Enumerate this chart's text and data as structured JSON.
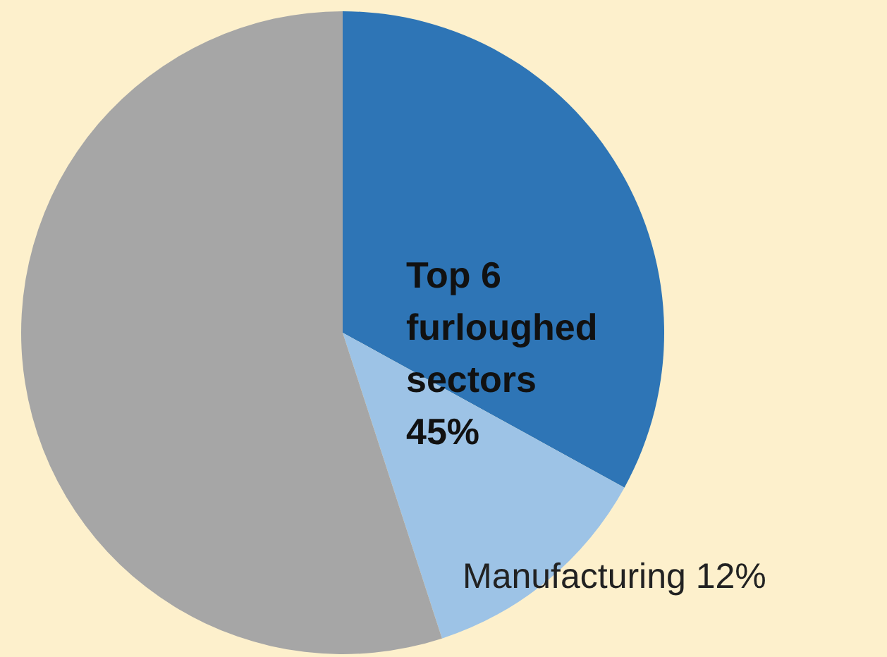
{
  "chart_data": {
    "type": "pie",
    "categories": [
      null,
      "Manufacturing",
      null
    ],
    "values": [
      33,
      12,
      55
    ],
    "colors": [
      "#2e75b6",
      "#9dc3e6",
      "#a6a6a6"
    ],
    "value_labels": [
      null,
      "12%",
      null
    ],
    "annotations": [
      "Top 6\nfurloughed\n sectors\n45%"
    ]
  }
}
